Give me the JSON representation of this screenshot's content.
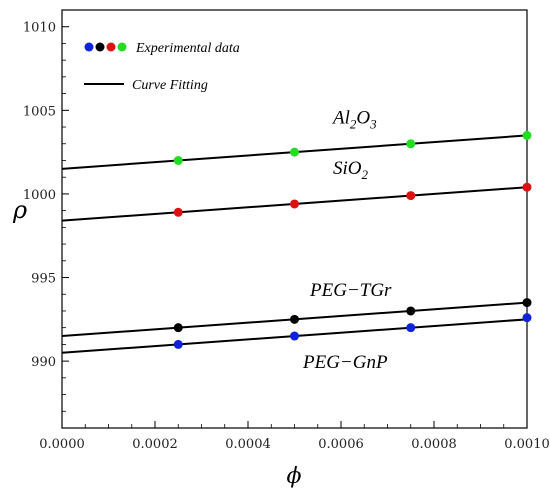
{
  "chart_data": {
    "type": "scatter",
    "title": "",
    "xlabel": "ϕ",
    "ylabel": "ρ",
    "xlim": [
      0,
      0.001
    ],
    "ylim": [
      986,
      1011
    ],
    "grid": false,
    "legend_position": "top-left",
    "x_ticks": [
      "0.0000",
      "0.0002",
      "0.0004",
      "0.0006",
      "0.0008",
      "0.0010"
    ],
    "y_ticks": [
      "990",
      "995",
      "1000",
      "1005",
      "1010"
    ],
    "legend": {
      "experimental_label": "Experimental data",
      "fit_label": "Curve Fitting"
    },
    "colors": {
      "Al2O3": "#22dd22",
      "SiO2": "#dd1111",
      "PEG-TGr": "#000000",
      "PEG-GnP": "#1122dd"
    },
    "series": [
      {
        "key": "Al2O3",
        "label_main": "Al",
        "label_sub1": "2",
        "label_mid": "O",
        "label_sub2": "3",
        "x": [
          0.00025,
          0.0005,
          0.00075,
          0.001
        ],
        "y": [
          1002.0,
          1002.5,
          1003.0,
          1003.5
        ],
        "fit": [
          1001.5,
          1003.5
        ]
      },
      {
        "key": "SiO2",
        "label_main": "SiO",
        "label_sub1": "2",
        "x": [
          0.00025,
          0.0005,
          0.00075,
          0.001
        ],
        "y": [
          998.9,
          999.4,
          999.9,
          1000.4
        ],
        "fit": [
          998.4,
          1000.4
        ]
      },
      {
        "key": "PEG-TGr",
        "label_main": "PEG−TGr",
        "x": [
          0.00025,
          0.0005,
          0.00075,
          0.001
        ],
        "y": [
          992.0,
          992.5,
          993.0,
          993.5
        ],
        "fit": [
          991.5,
          993.5
        ]
      },
      {
        "key": "PEG-GnP",
        "label_main": "PEG−GnP",
        "x": [
          0.00025,
          0.0005,
          0.00075,
          0.001
        ],
        "y": [
          991.0,
          991.5,
          992.0,
          992.6
        ],
        "fit": [
          990.5,
          992.5
        ]
      }
    ]
  }
}
